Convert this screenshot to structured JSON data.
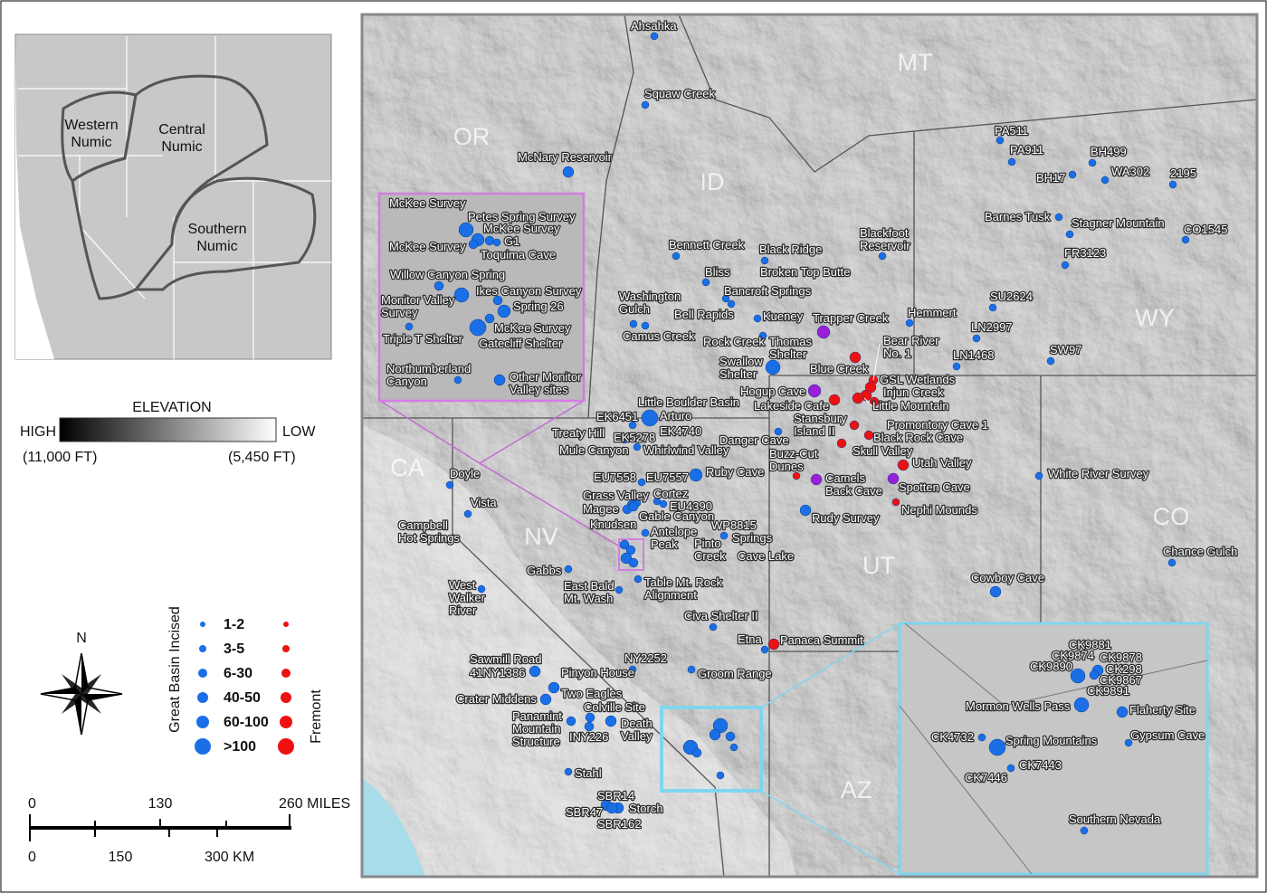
{
  "locator_map": {
    "region_labels": [
      [
        "Western",
        "Numic"
      ],
      [
        "Central",
        "Numic"
      ],
      [
        "Southern",
        "Numic"
      ]
    ]
  },
  "elevation_legend": {
    "title": "ELEVATION",
    "high": "HIGH",
    "low": "LOW",
    "high_value": "(11,000 FT)",
    "low_value": "(5,450 FT)"
  },
  "north_arrow": "N",
  "site_legend": {
    "incised_title": "Great Basin Incised",
    "fremont_title": "Fremont",
    "classes": [
      "1-2",
      "3-5",
      "6-30",
      "40-50",
      "60-100",
      ">100"
    ],
    "incised_color": "#1a6fe6",
    "fremont_color": "#ee1111"
  },
  "scale_bar": {
    "miles": [
      "0",
      "130",
      "260 MILES"
    ],
    "km": [
      "0",
      "150",
      "300 KM"
    ]
  },
  "state_labels": [
    "OR",
    "ID",
    "MT",
    "WY",
    "CA",
    "NV",
    "UT",
    "CO",
    "AZ"
  ],
  "sites": [
    {
      "label": [
        "Ahsahka"
      ],
      "color": "#1a6fe6"
    },
    {
      "label": [
        "Squaw Creek"
      ],
      "color": "#1a6fe6"
    },
    {
      "label": [
        "McNary Reservoir"
      ],
      "color": "#1a6fe6"
    },
    {
      "label": [
        "Bennett Creek"
      ],
      "color": "#1a6fe6"
    },
    {
      "label": [
        "Black Ridge"
      ],
      "color": "#1a6fe6"
    },
    {
      "label": [
        "Broken Top Butte"
      ],
      "color": "#1a6fe6"
    },
    {
      "label": [
        "Blackfoot",
        "Reservoir"
      ],
      "color": "#1a6fe6"
    },
    {
      "label": [
        "Bliss"
      ],
      "color": "#1a6fe6"
    },
    {
      "label": [
        "Bancroft Springs"
      ],
      "color": "#1a6fe6"
    },
    {
      "label": [
        "Washington",
        "Gulch"
      ],
      "color": "#1a6fe6"
    },
    {
      "label": [
        "Bell Rapids"
      ],
      "color": "#1a6fe6"
    },
    {
      "label": [
        "Camus Creek"
      ],
      "color": "#1a6fe6"
    },
    {
      "label": [
        "Kueney"
      ],
      "color": "#1a6fe6"
    },
    {
      "label": [
        "Trapper Creek"
      ],
      "color": "#9b1fd6"
    },
    {
      "label": [
        "Rock Creek"
      ],
      "color": "#1a6fe6"
    },
    {
      "label": [
        "Thomas",
        "Shelter"
      ],
      "color": "#1a6fe6"
    },
    {
      "label": [
        "Hemmert"
      ],
      "color": "#1a6fe6"
    },
    {
      "label": [
        "Swallow",
        "Shelter"
      ],
      "color": "#1a6fe6"
    },
    {
      "label": [
        "Bear River",
        "No. 1"
      ],
      "color": "#ee1111"
    },
    {
      "label": [
        "Blue Creek"
      ],
      "color": "#ee1111"
    },
    {
      "label": [
        "GSL Wetlands"
      ],
      "color": "#ee1111"
    },
    {
      "label": [
        "Injun Creek"
      ],
      "color": "#ee1111"
    },
    {
      "label": [
        "Hogup Cave"
      ],
      "color": "#9b1fd6"
    },
    {
      "label": [
        "Little Mountain"
      ],
      "color": "#ee1111"
    },
    {
      "label": [
        "Lakeside Cafe"
      ],
      "color": "#ee1111"
    },
    {
      "label": [
        "Stansbury",
        "Island II"
      ],
      "color": "#ee1111"
    },
    {
      "label": [
        "Promontory Cave 1"
      ],
      "color": "#ee1111"
    },
    {
      "label": [
        "Black Rock Cave"
      ],
      "color": "#ee1111"
    },
    {
      "label": [
        "Skull Valley"
      ],
      "color": "#ee1111"
    },
    {
      "label": [
        "Buzz-Cut",
        "Dunes"
      ],
      "color": "#ee1111"
    },
    {
      "label": [
        "Utah Valley"
      ],
      "color": "#ee1111"
    },
    {
      "label": [
        "Camels",
        "Back Cave"
      ],
      "color": "#9b1fd6"
    },
    {
      "label": [
        "Spotten Cave"
      ],
      "color": "#9b1fd6"
    },
    {
      "label": [
        "Nephi Mounds"
      ],
      "color": "#ee1111"
    },
    {
      "label": [
        "Rudy Survey"
      ],
      "color": "#1a6fe6"
    },
    {
      "label": [
        "Danger Cave"
      ],
      "color": "#1a6fe6"
    },
    {
      "label": [
        "Little Boulder Basin"
      ],
      "color": "#1a6fe6"
    },
    {
      "label": [
        "Arturo"
      ],
      "color": "#1a6fe6"
    },
    {
      "label": [
        "EK4740"
      ],
      "color": "#1a6fe6"
    },
    {
      "label": [
        "EK6451"
      ],
      "color": "#1a6fe6"
    },
    {
      "label": [
        "Treaty Hill"
      ],
      "color": "#1a6fe6"
    },
    {
      "label": [
        "EK5278"
      ],
      "color": "#1a6fe6"
    },
    {
      "label": [
        "Mule Canyon"
      ],
      "color": "#1a6fe6"
    },
    {
      "label": [
        "Whirlwind Valley"
      ],
      "color": "#1a6fe6"
    },
    {
      "label": [
        "EU7558"
      ],
      "color": "#1a6fe6"
    },
    {
      "label": [
        "EU7557"
      ],
      "color": "#1a6fe6"
    },
    {
      "label": [
        "Ruby Cave"
      ],
      "color": "#1a6fe6"
    },
    {
      "label": [
        "Grass Valley"
      ],
      "color": "#1a6fe6"
    },
    {
      "label": [
        "Magee"
      ],
      "color": "#1a6fe6"
    },
    {
      "label": [
        "Cortez"
      ],
      "color": "#1a6fe6"
    },
    {
      "label": [
        "EU4390"
      ],
      "color": "#1a6fe6"
    },
    {
      "label": [
        "Gable Canyon"
      ],
      "color": "#1a6fe6"
    },
    {
      "label": [
        "Knudsen"
      ],
      "color": "#1a6fe6"
    },
    {
      "label": [
        "Antelope",
        "Peak"
      ],
      "color": "#1a6fe6"
    },
    {
      "label": [
        "WP8815"
      ],
      "color": "#1a6fe6"
    },
    {
      "label": [
        "Pinto",
        "Creek"
      ],
      "color": "#1a6fe6"
    },
    {
      "label": [
        "Springs"
      ],
      "color": "#1a6fe6"
    },
    {
      "label": [
        "Cave Lake"
      ],
      "color": "#1a6fe6"
    },
    {
      "label": [
        "Gabbs"
      ],
      "color": "#1a6fe6"
    },
    {
      "label": [
        "East Bald",
        "Mt. Wash"
      ],
      "color": "#1a6fe6"
    },
    {
      "label": [
        "Table Mt. Rock",
        "Alignment"
      ],
      "color": "#1a6fe6"
    },
    {
      "label": [
        "Civa Shelter II"
      ],
      "color": "#1a6fe6"
    },
    {
      "label": [
        "Etna"
      ],
      "color": "#1a6fe6"
    },
    {
      "label": [
        "Panaca Summit"
      ],
      "color": "#ee1111"
    },
    {
      "label": [
        "NY2252"
      ],
      "color": "#1a6fe6"
    },
    {
      "label": [
        "Groom Range"
      ],
      "color": "#1a6fe6"
    },
    {
      "label": [
        "Sawmill Road"
      ],
      "color": "#1a6fe6"
    },
    {
      "label": [
        "41NY1386"
      ],
      "color": "#1a6fe6"
    },
    {
      "label": [
        "Pinyon House"
      ],
      "color": "#1a6fe6"
    },
    {
      "label": [
        "Crater Middens"
      ],
      "color": "#1a6fe6"
    },
    {
      "label": [
        "Two Eagles"
      ],
      "color": "#1a6fe6"
    },
    {
      "label": [
        "Colville Site"
      ],
      "color": "#1a6fe6"
    },
    {
      "label": [
        "Panamint",
        "Mountain",
        "Structure"
      ],
      "color": "#1a6fe6"
    },
    {
      "label": [
        "INY226"
      ],
      "color": "#1a6fe6"
    },
    {
      "label": [
        "Death",
        "Valley"
      ],
      "color": "#1a6fe6"
    },
    {
      "label": [
        "Stahl"
      ],
      "color": "#1a6fe6"
    },
    {
      "label": [
        "SBR14"
      ],
      "color": "#1a6fe6"
    },
    {
      "label": [
        "SBR47"
      ],
      "color": "#1a6fe6"
    },
    {
      "label": [
        "SBR162"
      ],
      "color": "#1a6fe6"
    },
    {
      "label": [
        "Storch"
      ],
      "color": "#1a6fe6"
    },
    {
      "label": [
        "Doyle"
      ],
      "color": "#1a6fe6"
    },
    {
      "label": [
        "Vista"
      ],
      "color": "#1a6fe6"
    },
    {
      "label": [
        "Campbell",
        "Hot Springs"
      ],
      "color": "#1a6fe6"
    },
    {
      "label": [
        "West",
        "Walker",
        "River"
      ],
      "color": "#1a6fe6"
    },
    {
      "label": [
        "Cowboy Cave"
      ],
      "color": "#1a6fe6"
    },
    {
      "label": [
        "White River Survey"
      ],
      "color": "#1a6fe6"
    },
    {
      "label": [
        "Chance Gulch"
      ],
      "color": "#1a6fe6"
    },
    {
      "label": [
        "PA511"
      ],
      "color": "#1a6fe6"
    },
    {
      "label": [
        "PA911"
      ],
      "color": "#1a6fe6"
    },
    {
      "label": [
        "BH499"
      ],
      "color": "#1a6fe6"
    },
    {
      "label": [
        "BH17"
      ],
      "color": "#1a6fe6"
    },
    {
      "label": [
        "WA302"
      ],
      "color": "#1a6fe6"
    },
    {
      "label": [
        "2195"
      ],
      "color": "#1a6fe6"
    },
    {
      "label": [
        "Barnes Tusk"
      ],
      "color": "#1a6fe6"
    },
    {
      "label": [
        "Stagner Mountain"
      ],
      "color": "#1a6fe6"
    },
    {
      "label": [
        "CO1545"
      ],
      "color": "#1a6fe6"
    },
    {
      "label": [
        "FR3123"
      ],
      "color": "#1a6fe6"
    },
    {
      "label": [
        "SU2624"
      ],
      "color": "#1a6fe6"
    },
    {
      "label": [
        "LN2997"
      ],
      "color": "#1a6fe6"
    },
    {
      "label": [
        "LN1468"
      ],
      "color": "#1a6fe6"
    },
    {
      "label": [
        "SW97"
      ],
      "color": "#1a6fe6"
    }
  ],
  "nevada_inset": {
    "labels": [
      [
        "McKee Survey"
      ],
      [
        "Petes Spring Survey"
      ],
      [
        "McKee Survey"
      ],
      [
        "McKee Survey"
      ],
      [
        "G1"
      ],
      [
        "Toquima Cave"
      ],
      [
        "Willow Canyon Spring"
      ],
      [
        "Ikes Canyon Survey"
      ],
      [
        "Monitor Valley",
        "Survey"
      ],
      [
        "Spring 26"
      ],
      [
        "Triple T Shelter"
      ],
      [
        "McKee Survey"
      ],
      [
        "Gatecliff Shelter"
      ],
      [
        "Northumberland",
        "Canyon"
      ],
      [
        "Other Monitor",
        "Valley sites"
      ]
    ]
  },
  "southern_nevada_inset": {
    "labels": [
      [
        "CK9881"
      ],
      [
        "CK9874"
      ],
      [
        "CK9878"
      ],
      [
        "CK9890"
      ],
      [
        "CK298"
      ],
      [
        "CK9867"
      ],
      [
        "CK9891"
      ],
      [
        "Mormon Wells Pass"
      ],
      [
        "Flaherty Site"
      ],
      [
        "CK4732"
      ],
      [
        "Spring Mountains"
      ],
      [
        "Gypsum Cave"
      ],
      [
        "CK7443"
      ],
      [
        "CK7446"
      ],
      [
        "Southern Nevada"
      ]
    ]
  }
}
